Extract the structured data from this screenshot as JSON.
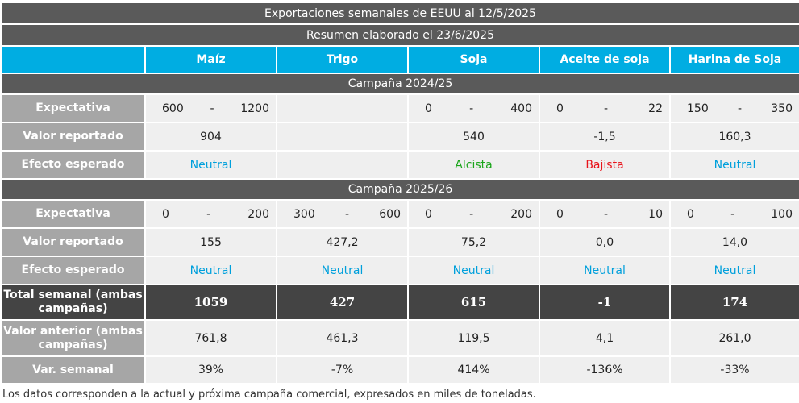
{
  "title": "Exportaciones semanales de EEUU al 12/5/2025",
  "subtitle": "Resumen elaborado el 23/6/2025",
  "columns": [
    "Maíz",
    "Trigo",
    "Soja",
    "Aceite de soja",
    "Harina de Soja"
  ],
  "labels": {
    "expectativa": "Expectativa",
    "valor": "Valor reportado",
    "efecto": "Efecto esperado",
    "total": "Total semanal (ambas campañas)",
    "anterior": "Valor anterior (ambas campañas)",
    "var": "Var. semanal"
  },
  "c1": {
    "name": "Campaña 2024/25",
    "exp": [
      [
        "600",
        "-",
        "1200"
      ],
      null,
      [
        "0",
        "-",
        "400"
      ],
      [
        "0",
        "-",
        "22"
      ],
      [
        "150",
        "-",
        "350"
      ]
    ],
    "valor": [
      "904",
      "",
      "540",
      "-1,5",
      "160,3"
    ],
    "efecto": [
      "Neutral",
      "",
      "Alcista",
      "Bajista",
      "Neutral"
    ]
  },
  "c2": {
    "name": "Campaña 2025/26",
    "exp": [
      [
        "0",
        "-",
        "200"
      ],
      [
        "300",
        "-",
        "600"
      ],
      [
        "0",
        "-",
        "200"
      ],
      [
        "0",
        "-",
        "10"
      ],
      [
        "0",
        "-",
        "100"
      ]
    ],
    "valor": [
      "155",
      "427,2",
      "75,2",
      "0,0",
      "14,0"
    ],
    "efecto": [
      "Neutral",
      "Neutral",
      "Neutral",
      "Neutral",
      "Neutral"
    ]
  },
  "total": [
    "1059",
    "427",
    "615",
    "-1",
    "174"
  ],
  "anterior": [
    "761,8",
    "461,3",
    "119,5",
    "4,1",
    "261,0"
  ],
  "var": [
    "39%",
    "-7%",
    "414%",
    "-136%",
    "-33%"
  ],
  "footnote": "Los datos corresponden a la actual y próxima campaña comercial, expresados en miles de toneladas."
}
